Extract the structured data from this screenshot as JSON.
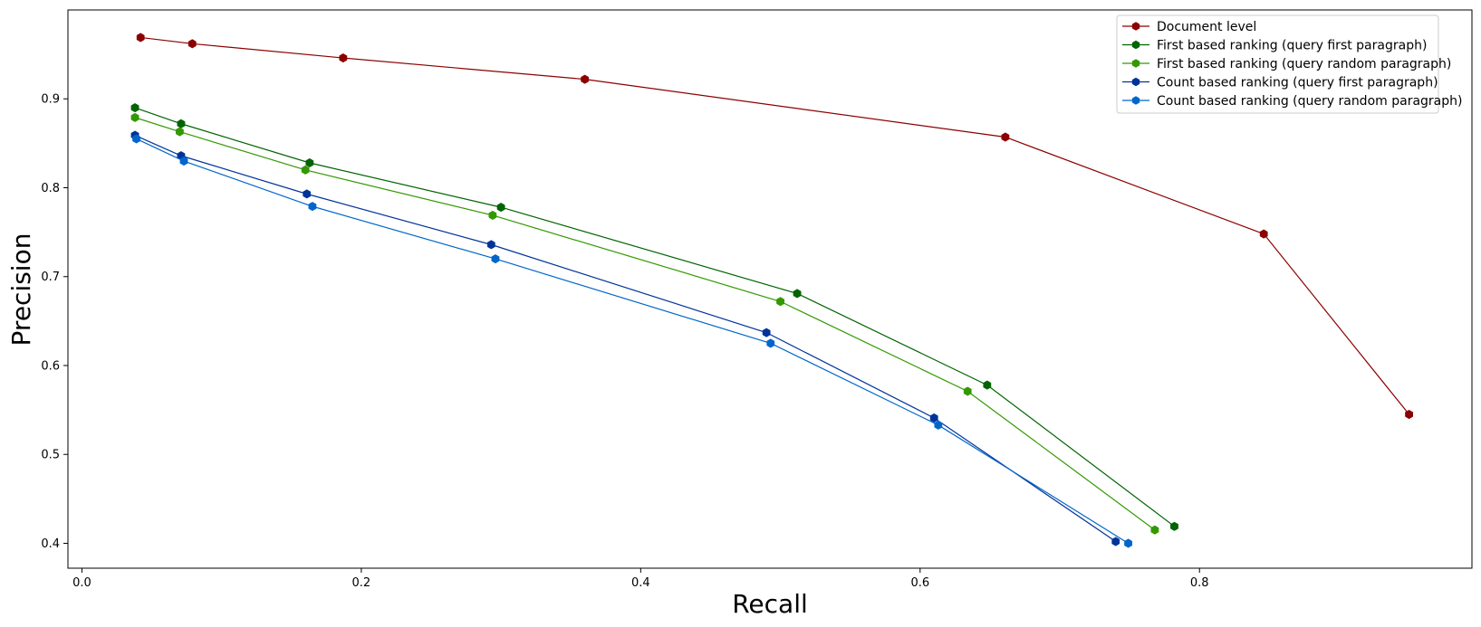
{
  "chart_data": {
    "type": "line",
    "title": "",
    "xlabel": "Recall",
    "ylabel": "Precision",
    "xlim": [
      -0.01,
      0.995
    ],
    "ylim": [
      0.372,
      1.0
    ],
    "xticks": [
      0.0,
      0.2,
      0.4,
      0.6,
      0.8
    ],
    "xtick_labels": [
      "0.0",
      "0.2",
      "0.4",
      "0.6",
      "0.8"
    ],
    "yticks": [
      0.4,
      0.5,
      0.6,
      0.7,
      0.8,
      0.9
    ],
    "ytick_labels": [
      "0.4",
      "0.5",
      "0.6",
      "0.7",
      "0.8",
      "0.9"
    ],
    "grid": false,
    "legend_position": "top-right",
    "series": [
      {
        "name": "Document level",
        "color": "#8b0000",
        "marker": "hexagon",
        "points": [
          [
            0.042,
            0.969
          ],
          [
            0.079,
            0.962
          ],
          [
            0.187,
            0.946
          ],
          [
            0.36,
            0.922
          ],
          [
            0.661,
            0.857
          ],
          [
            0.846,
            0.748
          ],
          [
            0.95,
            0.545
          ]
        ]
      },
      {
        "name": "First based ranking (query first paragraph)",
        "color": "#006400",
        "marker": "hexagon",
        "points": [
          [
            0.038,
            0.89
          ],
          [
            0.071,
            0.872
          ],
          [
            0.163,
            0.828
          ],
          [
            0.3,
            0.778
          ],
          [
            0.512,
            0.681
          ],
          [
            0.648,
            0.578
          ],
          [
            0.782,
            0.419
          ]
        ]
      },
      {
        "name": "First based ranking (query random paragraph)",
        "color": "#339900",
        "marker": "hexagon",
        "points": [
          [
            0.038,
            0.879
          ],
          [
            0.07,
            0.863
          ],
          [
            0.16,
            0.82
          ],
          [
            0.294,
            0.769
          ],
          [
            0.5,
            0.672
          ],
          [
            0.634,
            0.571
          ],
          [
            0.768,
            0.415
          ]
        ]
      },
      {
        "name": "Count based ranking (query first paragraph)",
        "color": "#003399",
        "marker": "hexagon",
        "points": [
          [
            0.038,
            0.859
          ],
          [
            0.071,
            0.836
          ],
          [
            0.161,
            0.793
          ],
          [
            0.293,
            0.736
          ],
          [
            0.49,
            0.637
          ],
          [
            0.61,
            0.541
          ],
          [
            0.74,
            0.402
          ]
        ]
      },
      {
        "name": "Count based ranking (query random paragraph)",
        "color": "#0066cc",
        "marker": "hexagon",
        "points": [
          [
            0.039,
            0.855
          ],
          [
            0.073,
            0.83
          ],
          [
            0.165,
            0.779
          ],
          [
            0.296,
            0.72
          ],
          [
            0.493,
            0.625
          ],
          [
            0.613,
            0.533
          ],
          [
            0.749,
            0.4
          ]
        ]
      }
    ]
  }
}
